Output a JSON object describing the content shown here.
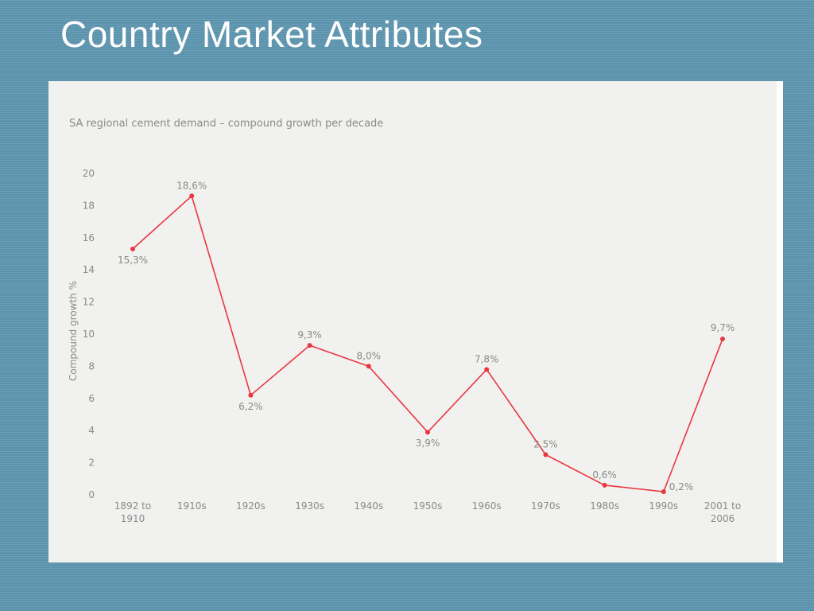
{
  "slide": {
    "title": "Country Market Attributes"
  },
  "chart_data": {
    "type": "line",
    "title": "SA regional cement demand – compound growth per decade",
    "xlabel": "",
    "ylabel": "Compound growth %",
    "categories": [
      [
        "1892 to",
        "1910"
      ],
      [
        "1910s"
      ],
      [
        "1920s"
      ],
      [
        "1930s"
      ],
      [
        "1940s"
      ],
      [
        "1950s"
      ],
      [
        "1960s"
      ],
      [
        "1970s"
      ],
      [
        "1980s"
      ],
      [
        "1990s"
      ],
      [
        "2001 to",
        "2006"
      ]
    ],
    "series": [
      {
        "values": [
          15.3,
          18.6,
          6.2,
          9.3,
          8.0,
          3.9,
          7.8,
          2.5,
          0.6,
          0.2,
          9.7
        ]
      }
    ],
    "data_labels": [
      "15,3%",
      "18,6%",
      "6,2%",
      "9,3%",
      "8,0%",
      "3,9%",
      "7,8%",
      "2,5%",
      "0,6%",
      "0,2%",
      "9,7%"
    ],
    "yticks": [
      0,
      2,
      4,
      6,
      8,
      10,
      12,
      14,
      16,
      18,
      20
    ],
    "ylim": [
      0,
      20
    ],
    "grid": false,
    "line_color": "#e8373f",
    "text_color": "#8a8a8a"
  }
}
